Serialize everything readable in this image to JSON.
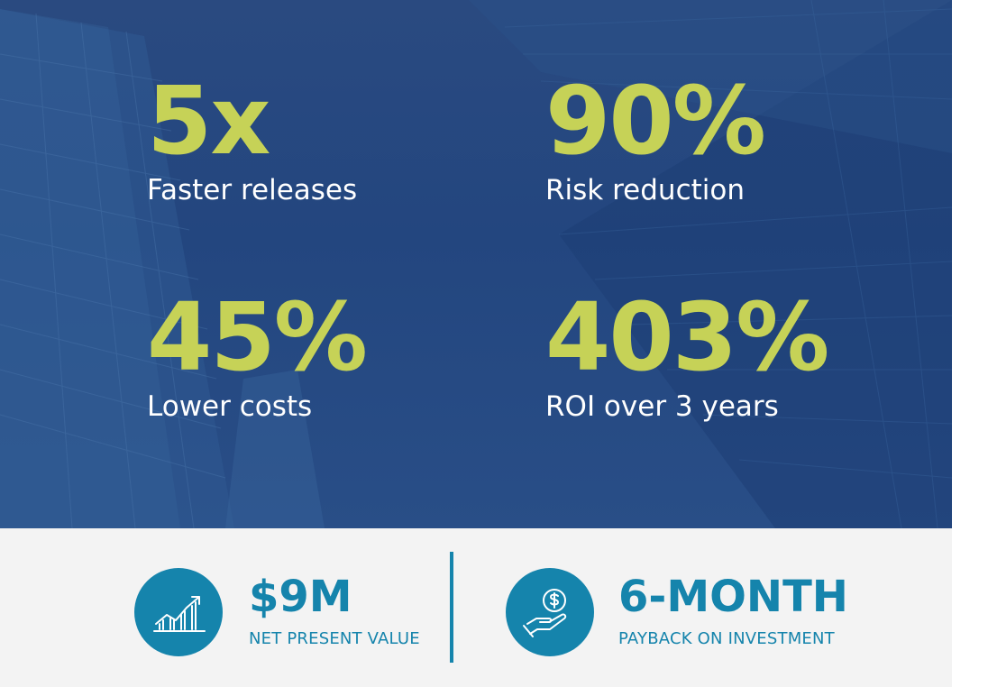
{
  "stats": [
    {
      "value": "5x",
      "label": "Faster releases"
    },
    {
      "value": "90%",
      "label": "Risk reduction"
    },
    {
      "value": "45%",
      "label": "Lower costs"
    },
    {
      "value": "403%",
      "label": "ROI over 3 years"
    }
  ],
  "kpis": [
    {
      "value": "$9M",
      "label": "NET PRESENT VALUE",
      "icon": "growth-chart-icon"
    },
    {
      "value": "6-MONTH",
      "label": "PAYBACK ON INVESTMENT",
      "icon": "hand-coin-icon"
    }
  ],
  "colors": {
    "hero_background": "#23467f",
    "stat_value": "#c6d257",
    "accent": "#1584ac",
    "band_background": "#f3f3f3"
  }
}
